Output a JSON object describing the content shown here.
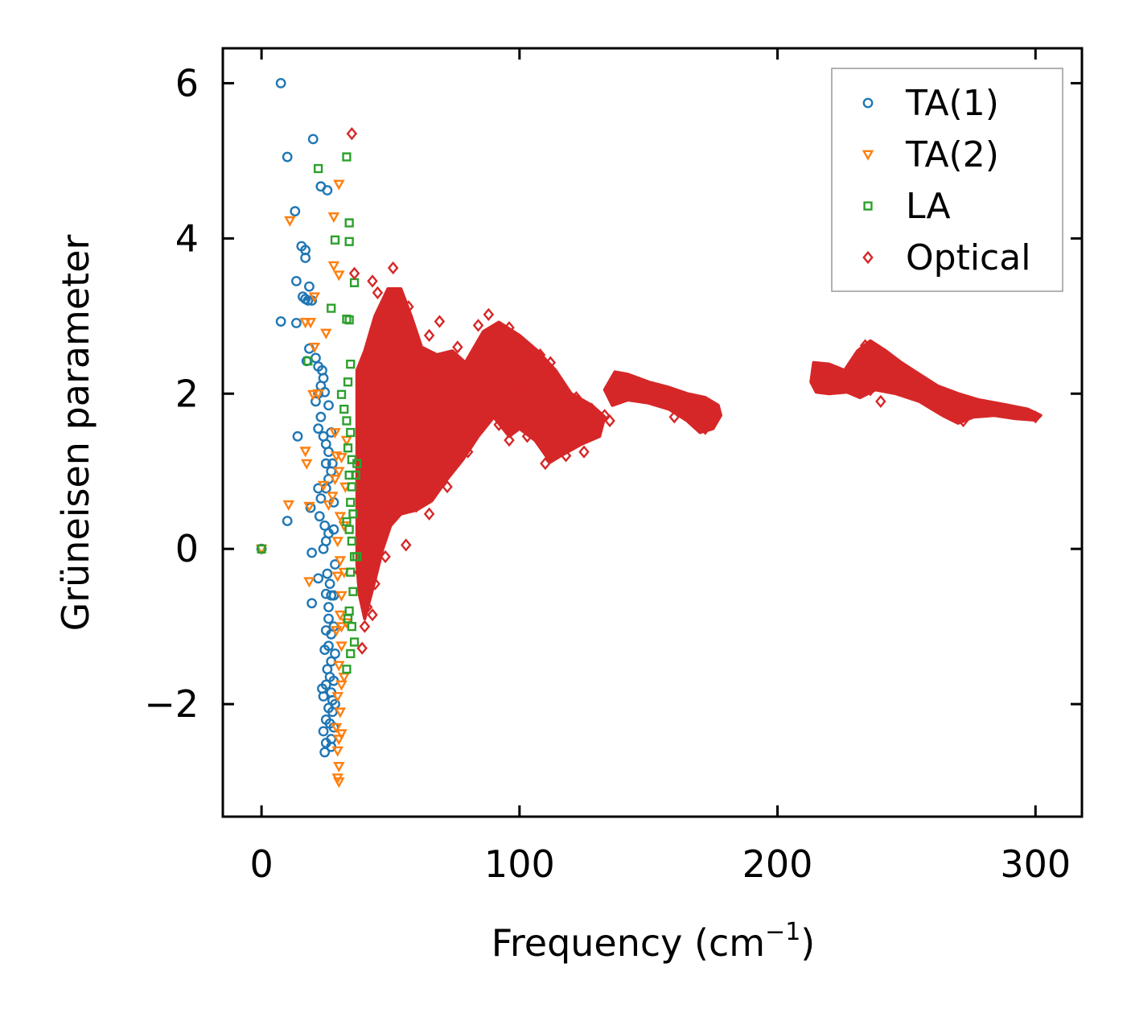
{
  "chart_data": {
    "type": "scatter",
    "title": "",
    "xlabel": "Frequency (cm",
    "xlabel_sup": "−1",
    "xlabel_close": ")",
    "ylabel": "Grüneisen parameter",
    "xlim": [
      -15,
      318
    ],
    "ylim": [
      -3.45,
      6.45
    ],
    "xticks": [
      0,
      100,
      200,
      300
    ],
    "xtick_labels": [
      "0",
      "100",
      "200",
      "300"
    ],
    "yticks": [
      -2,
      0,
      2,
      4,
      6
    ],
    "ytick_labels": [
      "−2",
      "0",
      "2",
      "4",
      "6"
    ],
    "grid": false,
    "legend_position": "top-right",
    "series": [
      {
        "name": "TA(1)",
        "marker": "circle",
        "color": "#1f77b4",
        "points": [
          [
            0,
            0
          ],
          [
            7.5,
            6.0
          ],
          [
            10,
            5.05
          ],
          [
            13,
            4.35
          ],
          [
            20,
            5.28
          ],
          [
            23,
            4.67
          ],
          [
            25.5,
            4.62
          ],
          [
            15.5,
            3.9
          ],
          [
            17,
            3.75
          ],
          [
            17,
            3.85
          ],
          [
            13.5,
            3.45
          ],
          [
            17,
            3.22
          ],
          [
            18.5,
            3.38
          ],
          [
            18,
            3.2
          ],
          [
            19.5,
            3.2
          ],
          [
            16,
            3.25
          ],
          [
            7.5,
            2.93
          ],
          [
            13.5,
            2.91
          ],
          [
            18.5,
            2.58
          ],
          [
            17.5,
            2.42
          ],
          [
            21,
            2.46
          ],
          [
            22,
            2.35
          ],
          [
            23.5,
            2.3
          ],
          [
            24,
            2.2
          ],
          [
            22,
            2.0
          ],
          [
            21,
            1.9
          ],
          [
            23,
            1.7
          ],
          [
            22,
            1.55
          ],
          [
            24,
            1.45
          ],
          [
            14,
            1.45
          ],
          [
            25,
            1.35
          ],
          [
            26,
            1.25
          ],
          [
            25,
            1.1
          ],
          [
            27,
            1.0
          ],
          [
            26,
            0.9
          ],
          [
            25,
            0.78
          ],
          [
            22,
            0.78
          ],
          [
            23,
            0.65
          ],
          [
            19,
            0.53
          ],
          [
            10,
            0.36
          ],
          [
            22.5,
            0.42
          ],
          [
            24.5,
            0.3
          ],
          [
            26,
            0.2
          ],
          [
            25,
            0.1
          ],
          [
            19.5,
            -0.05
          ],
          [
            24,
            0.0
          ],
          [
            22,
            -0.38
          ],
          [
            25.5,
            -0.32
          ],
          [
            19.5,
            -0.7
          ],
          [
            25,
            -0.58
          ],
          [
            26,
            -0.75
          ],
          [
            27,
            -0.6
          ],
          [
            26,
            -0.9
          ],
          [
            25,
            -1.05
          ],
          [
            27,
            -1.1
          ],
          [
            26,
            -1.25
          ],
          [
            24.5,
            -1.3
          ],
          [
            27,
            -1.45
          ],
          [
            25.5,
            -1.55
          ],
          [
            26.5,
            -1.65
          ],
          [
            25,
            -1.75
          ],
          [
            27,
            -1.85
          ],
          [
            24,
            -1.9
          ],
          [
            26,
            -2.05
          ],
          [
            27.5,
            -2.1
          ],
          [
            25,
            -2.2
          ],
          [
            26.5,
            -2.25
          ],
          [
            24,
            -2.35
          ],
          [
            27,
            -2.45
          ],
          [
            25,
            -2.5
          ],
          [
            24.5,
            -2.62
          ],
          [
            28,
            -2.3
          ],
          [
            28.5,
            -2.0
          ],
          [
            28,
            -1.7
          ],
          [
            28.5,
            -1.35
          ],
          [
            28,
            -1.0
          ],
          [
            28,
            -0.6
          ],
          [
            28.5,
            -0.2
          ],
          [
            28,
            0.25
          ],
          [
            28,
            0.6
          ],
          [
            27.5,
            1.1
          ],
          [
            27,
            1.5
          ],
          [
            26,
            1.85
          ],
          [
            24.5,
            2.02
          ],
          [
            23,
            2.1
          ],
          [
            26.5,
            -0.45
          ],
          [
            27.5,
            -1.95
          ],
          [
            23.5,
            -1.8
          ],
          [
            27,
            -2.55
          ]
        ]
      },
      {
        "name": "TA(2)",
        "marker": "triangle-down",
        "color": "#ff7f0e",
        "points": [
          [
            0,
            0
          ],
          [
            11,
            4.23
          ],
          [
            30,
            4.7
          ],
          [
            28,
            4.28
          ],
          [
            30,
            3.53
          ],
          [
            28,
            3.65
          ],
          [
            20.5,
            3.25
          ],
          [
            19,
            2.92
          ],
          [
            17,
            2.92
          ],
          [
            25,
            2.78
          ],
          [
            20.5,
            2.6
          ],
          [
            20,
            1.99
          ],
          [
            22,
            2.0
          ],
          [
            17,
            1.26
          ],
          [
            17.5,
            1.1
          ],
          [
            10.5,
            0.57
          ],
          [
            18.5,
            0.55
          ],
          [
            18.5,
            -0.42
          ],
          [
            24,
            0.82
          ],
          [
            26,
            0.57
          ],
          [
            27.5,
            0.68
          ],
          [
            28.5,
            0.9
          ],
          [
            30,
            1.0
          ],
          [
            31,
            1.18
          ],
          [
            29,
            1.2
          ],
          [
            30.5,
            0.42
          ],
          [
            29.5,
            0.1
          ],
          [
            30.5,
            -0.15
          ],
          [
            29.5,
            -0.35
          ],
          [
            31,
            -0.6
          ],
          [
            30.5,
            -0.85
          ],
          [
            29,
            -1.05
          ],
          [
            31,
            -1.25
          ],
          [
            30,
            -1.5
          ],
          [
            31,
            -1.75
          ],
          [
            29.5,
            -1.9
          ],
          [
            30.5,
            -2.1
          ],
          [
            29,
            -2.3
          ],
          [
            31,
            -2.38
          ],
          [
            29.5,
            -2.6
          ],
          [
            30,
            -2.8
          ],
          [
            29.5,
            -2.95
          ],
          [
            30,
            -3.0
          ],
          [
            31,
            -1.0
          ],
          [
            32,
            -0.3
          ],
          [
            32,
            0.3
          ],
          [
            32.5,
            0.8
          ],
          [
            33,
            1.4
          ],
          [
            28.5,
            1.5
          ],
          [
            32,
            -1.65
          ],
          [
            33,
            -0.95
          ],
          [
            30,
            -2.45
          ]
        ]
      },
      {
        "name": "LA",
        "marker": "square",
        "color": "#2ca02c",
        "points": [
          [
            0,
            0
          ],
          [
            22,
            4.9
          ],
          [
            33,
            5.05
          ],
          [
            34,
            4.2
          ],
          [
            28.5,
            3.98
          ],
          [
            34,
            3.96
          ],
          [
            36,
            3.43
          ],
          [
            27,
            3.1
          ],
          [
            33,
            2.96
          ],
          [
            34,
            2.95
          ],
          [
            34.5,
            2.38
          ],
          [
            33.5,
            2.15
          ],
          [
            31,
            1.99
          ],
          [
            32,
            1.8
          ],
          [
            33,
            1.65
          ],
          [
            34.5,
            1.5
          ],
          [
            33.5,
            1.3
          ],
          [
            35,
            1.15
          ],
          [
            34,
            0.95
          ],
          [
            35,
            0.8
          ],
          [
            34.5,
            0.6
          ],
          [
            35.5,
            0.45
          ],
          [
            34,
            0.25
          ],
          [
            35,
            0.1
          ],
          [
            36,
            -0.1
          ],
          [
            34.5,
            -0.3
          ],
          [
            35.5,
            -0.55
          ],
          [
            34,
            -0.8
          ],
          [
            35,
            -1.0
          ],
          [
            36,
            -1.2
          ],
          [
            34.5,
            -1.35
          ],
          [
            33,
            -1.55
          ],
          [
            18,
            2.42
          ],
          [
            33,
            0.35
          ],
          [
            36.5,
            0.95
          ],
          [
            37,
            1.1
          ],
          [
            37,
            -0.1
          ],
          [
            33.5,
            -0.9
          ]
        ]
      },
      {
        "name": "Optical",
        "marker": "diamond",
        "color": "#d62728",
        "points": [
          [
            35,
            5.35
          ],
          [
            36,
            3.55
          ],
          [
            51,
            3.62
          ],
          [
            45,
            3.3
          ],
          [
            43,
            3.45
          ],
          [
            51,
            3.22
          ],
          [
            57,
            3.12
          ],
          [
            49,
            2.95
          ],
          [
            65,
            2.75
          ],
          [
            69,
            2.93
          ],
          [
            58,
            2.6
          ],
          [
            76,
            2.6
          ],
          [
            84,
            2.88
          ],
          [
            88,
            3.02
          ],
          [
            96,
            2.85
          ],
          [
            103,
            2.6
          ],
          [
            108,
            2.5
          ],
          [
            112,
            2.4
          ],
          [
            116,
            2.1
          ],
          [
            122,
            1.95
          ],
          [
            128,
            1.8
          ],
          [
            133,
            1.72
          ],
          [
            138,
            2.2
          ],
          [
            145,
            2.12
          ],
          [
            152,
            2.05
          ],
          [
            160,
            1.98
          ],
          [
            168,
            1.88
          ],
          [
            175,
            1.78
          ],
          [
            172,
            1.55
          ],
          [
            160,
            1.7
          ],
          [
            218,
            2.28
          ],
          [
            226,
            2.15
          ],
          [
            234,
            2.62
          ],
          [
            242,
            2.4
          ],
          [
            250,
            2.2
          ],
          [
            258,
            2.05
          ],
          [
            266,
            1.95
          ],
          [
            272,
            1.8
          ],
          [
            280,
            1.85
          ],
          [
            290,
            1.76
          ],
          [
            300,
            1.7
          ],
          [
            236,
            2.05
          ],
          [
            240,
            1.9
          ],
          [
            272,
            1.65
          ],
          [
            56,
            0.05
          ],
          [
            50,
            0.55
          ],
          [
            45,
            0.35
          ],
          [
            42,
            0.0
          ],
          [
            38,
            -0.3
          ],
          [
            41,
            -0.75
          ],
          [
            43,
            -0.85
          ],
          [
            40,
            -1.0
          ],
          [
            39,
            -1.28
          ],
          [
            44,
            -0.45
          ],
          [
            48,
            -0.1
          ],
          [
            60,
            0.55
          ],
          [
            65,
            0.45
          ],
          [
            72,
            0.8
          ],
          [
            80,
            1.25
          ],
          [
            92,
            1.6
          ],
          [
            96,
            1.4
          ],
          [
            103,
            1.45
          ],
          [
            110,
            1.1
          ],
          [
            118,
            1.2
          ],
          [
            125,
            1.25
          ],
          [
            56,
            0.85
          ],
          [
            62,
            1.15
          ],
          [
            40,
            2.4
          ],
          [
            42,
            2.0
          ],
          [
            44,
            1.55
          ],
          [
            46,
            1.1
          ],
          [
            48,
            0.9
          ],
          [
            53,
            1.4
          ],
          [
            58,
            1.95
          ],
          [
            63,
            2.25
          ],
          [
            70,
            2.45
          ],
          [
            80,
            2.2
          ],
          [
            88,
            2.15
          ],
          [
            100,
            2.05
          ],
          [
            105,
            1.8
          ],
          [
            115,
            1.6
          ],
          [
            125,
            1.55
          ],
          [
            135,
            1.65
          ]
        ]
      }
    ]
  }
}
